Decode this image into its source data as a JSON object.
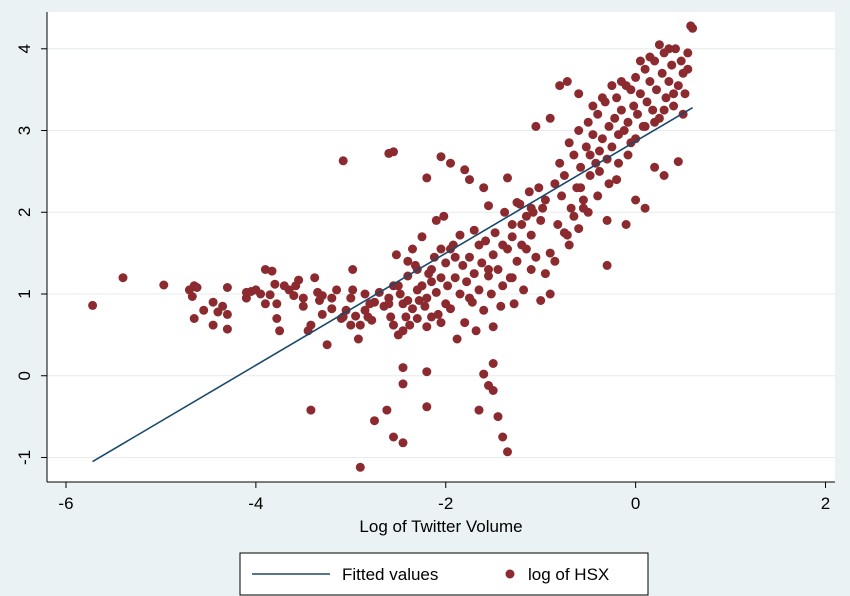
{
  "chart_data": {
    "type": "scatter",
    "title": "",
    "xlabel": "Log of Twitter Volume",
    "ylabel": "",
    "xlim": [
      -6.2,
      2.1
    ],
    "ylim": [
      -1.3,
      4.45
    ],
    "x_ticks": [
      -6,
      -4,
      -2,
      0,
      2
    ],
    "y_ticks": [
      -1,
      0,
      1,
      2,
      3,
      4
    ],
    "x_tick_labels": [
      "-6",
      "-4",
      "-2",
      "0",
      "2"
    ],
    "y_tick_labels": [
      "-1",
      "0",
      "1",
      "2",
      "3",
      "4"
    ],
    "grid": "horizontal",
    "legend_position": "bottom",
    "colors": {
      "plot_background": "#ffffff",
      "outer_background": "#eaf2f3",
      "gridline": "#e6ecee",
      "fitted_line": "#1a4a6b",
      "points": "#8b2a2f"
    },
    "series": [
      {
        "name": "Fitted values",
        "kind": "line",
        "points": [
          [
            -5.72,
            -1.05
          ],
          [
            0.6,
            3.28
          ]
        ]
      },
      {
        "name": "log of HSX",
        "kind": "scatter",
        "points": [
          [
            -5.72,
            0.86
          ],
          [
            -5.4,
            1.2
          ],
          [
            -4.97,
            1.11
          ],
          [
            -4.65,
            1.1
          ],
          [
            -4.62,
            1.08
          ],
          [
            -4.67,
            0.97
          ],
          [
            -4.65,
            0.7
          ],
          [
            -4.55,
            0.8
          ],
          [
            -4.45,
            0.62
          ],
          [
            -4.4,
            0.78
          ],
          [
            -4.35,
            0.85
          ],
          [
            -4.3,
            0.57
          ],
          [
            -4.3,
            0.75
          ],
          [
            -4.3,
            1.08
          ],
          [
            -4.1,
            0.95
          ],
          [
            -4.05,
            1.03
          ],
          [
            -4.0,
            1.05
          ],
          [
            -3.95,
            1.0
          ],
          [
            -3.9,
            1.3
          ],
          [
            -3.85,
            0.99
          ],
          [
            -3.83,
            1.28
          ],
          [
            -3.8,
            1.12
          ],
          [
            -3.78,
            0.88
          ],
          [
            -3.78,
            0.7
          ],
          [
            -3.75,
            0.55
          ],
          [
            -3.65,
            1.05
          ],
          [
            -3.6,
            0.98
          ],
          [
            -3.58,
            1.1
          ],
          [
            -3.55,
            1.17
          ],
          [
            -3.5,
            0.85
          ],
          [
            -3.45,
            0.55
          ],
          [
            -3.42,
            0.62
          ],
          [
            -3.38,
            1.2
          ],
          [
            -3.35,
            1.02
          ],
          [
            -3.33,
            0.92
          ],
          [
            -3.3,
            0.75
          ],
          [
            -3.3,
            0.98
          ],
          [
            -3.25,
            0.38
          ],
          [
            -3.2,
            0.82
          ],
          [
            -3.15,
            1.05
          ],
          [
            -3.1,
            0.7
          ],
          [
            -3.08,
            0.72
          ],
          [
            -3.05,
            0.8
          ],
          [
            -3.0,
            0.95
          ],
          [
            -2.98,
            1.05
          ],
          [
            -2.95,
            0.73
          ],
          [
            -2.92,
            0.45
          ],
          [
            -2.9,
            0.62
          ],
          [
            -2.85,
            1.0
          ],
          [
            -2.82,
            0.72
          ],
          [
            -2.8,
            0.88
          ],
          [
            -2.78,
            0.68
          ],
          [
            -2.75,
            0.9
          ],
          [
            -3.08,
            2.63
          ],
          [
            -2.98,
            1.3
          ],
          [
            -3.42,
            -0.42
          ],
          [
            -2.9,
            -1.12
          ],
          [
            -2.75,
            -0.55
          ],
          [
            -2.6,
            2.72
          ],
          [
            -2.55,
            2.74
          ],
          [
            -2.62,
            -0.42
          ],
          [
            -2.65,
            0.85
          ],
          [
            -2.6,
            0.95
          ],
          [
            -2.58,
            0.72
          ],
          [
            -2.55,
            0.62
          ],
          [
            -2.5,
            1.1
          ],
          [
            -2.52,
            1.48
          ],
          [
            -2.48,
            1.0
          ],
          [
            -2.45,
            0.88
          ],
          [
            -2.45,
            0.55
          ],
          [
            -2.42,
            0.72
          ],
          [
            -2.4,
            1.22
          ],
          [
            -2.4,
            0.92
          ],
          [
            -2.38,
            0.62
          ],
          [
            -2.35,
            1.55
          ],
          [
            -2.35,
            0.82
          ],
          [
            -2.32,
            1.35
          ],
          [
            -2.3,
            1.3
          ],
          [
            -2.3,
            1.05
          ],
          [
            -2.28,
            0.92
          ],
          [
            -2.25,
            1.7
          ],
          [
            -2.25,
            1.1
          ],
          [
            -2.22,
            0.85
          ],
          [
            -2.2,
            0.6
          ],
          [
            -2.2,
            0.95
          ],
          [
            -2.18,
            1.25
          ],
          [
            -2.15,
            0.72
          ],
          [
            -2.15,
            1.15
          ],
          [
            -2.12,
            1.45
          ],
          [
            -2.1,
            1.9
          ],
          [
            -2.1,
            1.02
          ],
          [
            -2.08,
            0.75
          ],
          [
            -2.05,
            1.55
          ],
          [
            -2.05,
            1.2
          ],
          [
            -2.02,
            1.95
          ],
          [
            -2.0,
            1.38
          ],
          [
            -2.0,
            0.88
          ],
          [
            -1.98,
            1.1
          ],
          [
            -1.95,
            0.82
          ],
          [
            -1.92,
            1.6
          ],
          [
            -1.9,
            1.2
          ],
          [
            -1.9,
            1.45
          ],
          [
            -1.88,
            0.45
          ],
          [
            -1.85,
            1.72
          ],
          [
            -1.85,
            1.0
          ],
          [
            -1.82,
            1.35
          ],
          [
            -1.8,
            0.65
          ],
          [
            -1.78,
            1.15
          ],
          [
            -1.75,
            1.45
          ],
          [
            -1.72,
            0.9
          ],
          [
            -1.7,
            1.78
          ],
          [
            -1.7,
            1.25
          ],
          [
            -1.68,
            0.55
          ],
          [
            -1.65,
            1.05
          ],
          [
            -1.62,
            1.38
          ],
          [
            -1.6,
            0.8
          ],
          [
            -1.58,
            1.65
          ],
          [
            -1.55,
            1.22
          ],
          [
            -1.52,
            1.0
          ],
          [
            -1.5,
            0.6
          ],
          [
            -1.5,
            1.48
          ],
          [
            -1.48,
            1.75
          ],
          [
            -1.45,
            1.3
          ],
          [
            -1.42,
            0.85
          ],
          [
            -1.4,
            1.1
          ],
          [
            -1.38,
            2.0
          ],
          [
            -1.35,
            1.55
          ],
          [
            -1.32,
            1.2
          ],
          [
            -1.3,
            1.85
          ],
          [
            -1.28,
            0.88
          ],
          [
            -1.25,
            1.4
          ],
          [
            -1.22,
            2.1
          ],
          [
            -1.2,
            1.6
          ],
          [
            -1.18,
            1.05
          ],
          [
            -1.15,
            1.95
          ],
          [
            -1.12,
            2.25
          ],
          [
            -1.1,
            1.72
          ],
          [
            -1.08,
            2.0
          ],
          [
            -1.05,
            1.45
          ],
          [
            -1.02,
            2.3
          ],
          [
            -1.0,
            1.9
          ],
          [
            -0.98,
            2.05
          ],
          [
            -0.95,
            2.15
          ],
          [
            -2.45,
            0.1
          ],
          [
            -2.45,
            -0.1
          ],
          [
            -2.45,
            -0.82
          ],
          [
            -2.2,
            0.05
          ],
          [
            -2.2,
            -0.38
          ],
          [
            -2.55,
            -0.75
          ],
          [
            -1.6,
            0.02
          ],
          [
            -1.55,
            -0.12
          ],
          [
            -1.5,
            -0.18
          ],
          [
            -1.5,
            0.15
          ],
          [
            -1.65,
            -0.42
          ],
          [
            -1.45,
            -0.5
          ],
          [
            -1.4,
            -0.75
          ],
          [
            -1.35,
            -0.93
          ],
          [
            -2.2,
            2.42
          ],
          [
            -2.05,
            2.68
          ],
          [
            -1.95,
            2.6
          ],
          [
            -1.8,
            2.52
          ],
          [
            -1.75,
            2.4
          ],
          [
            -1.6,
            2.3
          ],
          [
            -1.55,
            2.08
          ],
          [
            -1.35,
            2.42
          ],
          [
            -1.25,
            2.12
          ],
          [
            -0.9,
            1.5
          ],
          [
            -0.85,
            2.35
          ],
          [
            -0.82,
            1.85
          ],
          [
            -0.8,
            2.6
          ],
          [
            -0.78,
            2.2
          ],
          [
            -0.75,
            2.45
          ],
          [
            -0.72,
            1.72
          ],
          [
            -0.7,
            2.85
          ],
          [
            -0.68,
            2.05
          ],
          [
            -0.65,
            2.7
          ],
          [
            -0.62,
            2.3
          ],
          [
            -0.6,
            3.0
          ],
          [
            -0.58,
            2.55
          ],
          [
            -0.55,
            2.15
          ],
          [
            -0.52,
            2.8
          ],
          [
            -0.5,
            3.1
          ],
          [
            -0.48,
            2.45
          ],
          [
            -0.45,
            2.95
          ],
          [
            -0.42,
            2.6
          ],
          [
            -0.4,
            3.2
          ],
          [
            -0.38,
            2.75
          ],
          [
            -0.35,
            2.9
          ],
          [
            -0.32,
            3.35
          ],
          [
            -0.3,
            2.65
          ],
          [
            -0.28,
            3.05
          ],
          [
            -0.25,
            2.8
          ],
          [
            -0.22,
            3.15
          ],
          [
            -0.2,
            3.4
          ],
          [
            -0.18,
            2.95
          ],
          [
            -0.15,
            3.25
          ],
          [
            -0.12,
            3.0
          ],
          [
            -0.1,
            3.55
          ],
          [
            -0.08,
            3.1
          ],
          [
            -0.05,
            2.85
          ],
          [
            -0.02,
            3.3
          ],
          [
            0.0,
            3.65
          ],
          [
            0.02,
            3.2
          ],
          [
            0.05,
            3.45
          ],
          [
            0.08,
            3.05
          ],
          [
            0.1,
            3.75
          ],
          [
            0.12,
            3.35
          ],
          [
            0.15,
            3.6
          ],
          [
            0.18,
            3.25
          ],
          [
            0.2,
            3.85
          ],
          [
            0.22,
            3.5
          ],
          [
            0.25,
            3.15
          ],
          [
            0.28,
            3.7
          ],
          [
            0.3,
            3.95
          ],
          [
            0.32,
            3.4
          ],
          [
            0.35,
            3.6
          ],
          [
            0.38,
            3.8
          ],
          [
            0.4,
            3.3
          ],
          [
            0.42,
            4.0
          ],
          [
            0.45,
            3.55
          ],
          [
            0.48,
            3.85
          ],
          [
            0.5,
            3.7
          ],
          [
            0.52,
            3.45
          ],
          [
            0.55,
            3.95
          ],
          [
            0.58,
            4.28
          ],
          [
            0.6,
            4.25
          ],
          [
            0.55,
            3.75
          ],
          [
            0.5,
            3.2
          ],
          [
            -1.05,
            3.05
          ],
          [
            -0.9,
            3.15
          ],
          [
            -0.8,
            3.55
          ],
          [
            -0.72,
            3.6
          ],
          [
            -0.6,
            3.45
          ],
          [
            -0.45,
            3.3
          ],
          [
            -0.35,
            3.4
          ],
          [
            -0.25,
            3.55
          ],
          [
            -0.15,
            3.6
          ],
          [
            -0.05,
            3.5
          ],
          [
            0.05,
            3.85
          ],
          [
            0.15,
            3.9
          ],
          [
            0.25,
            4.05
          ],
          [
            0.35,
            4.0
          ],
          [
            -0.6,
            1.8
          ],
          [
            -0.5,
            2.0
          ],
          [
            -0.4,
            2.2
          ],
          [
            -0.3,
            1.9
          ],
          [
            -0.2,
            2.4
          ],
          [
            -0.1,
            1.85
          ],
          [
            0.0,
            2.15
          ],
          [
            0.1,
            2.05
          ],
          [
            0.2,
            2.55
          ],
          [
            0.3,
            2.45
          ],
          [
            0.45,
            2.62
          ],
          [
            -0.3,
            1.35
          ],
          [
            -0.55,
            2.05
          ],
          [
            -0.7,
            1.6
          ],
          [
            -0.95,
            1.25
          ],
          [
            -1.1,
            1.3
          ],
          [
            -1.0,
            0.92
          ],
          [
            -0.9,
            1.0
          ],
          [
            -0.85,
            1.4
          ],
          [
            -0.75,
            1.75
          ],
          [
            -0.65,
            1.95
          ],
          [
            -0.58,
            2.3
          ],
          [
            -0.48,
            2.7
          ],
          [
            -0.38,
            2.5
          ],
          [
            -0.28,
            2.35
          ],
          [
            -0.18,
            2.6
          ],
          [
            -0.08,
            2.7
          ],
          [
            0.0,
            2.9
          ],
          [
            0.1,
            3.05
          ],
          [
            0.2,
            3.1
          ],
          [
            0.3,
            3.25
          ],
          [
            0.4,
            3.45
          ],
          [
            -1.3,
            1.7
          ],
          [
            -1.2,
            1.85
          ],
          [
            -1.1,
            2.05
          ],
          [
            -1.15,
            1.55
          ],
          [
            -1.3,
            1.2
          ],
          [
            -1.4,
            1.6
          ],
          [
            -1.55,
            1.3
          ],
          [
            -1.65,
            1.6
          ],
          [
            -1.75,
            0.95
          ],
          [
            -1.95,
            1.55
          ],
          [
            -2.05,
            0.65
          ],
          [
            -2.15,
            1.3
          ],
          [
            -2.3,
            0.7
          ],
          [
            -2.4,
            1.4
          ],
          [
            -2.5,
            0.5
          ],
          [
            -2.55,
            1.1
          ],
          [
            -2.6,
            0.88
          ],
          [
            -2.7,
            1.02
          ],
          [
            -2.85,
            0.8
          ],
          [
            -3.0,
            0.62
          ],
          [
            -3.2,
            0.95
          ],
          [
            -3.5,
            0.95
          ],
          [
            -3.7,
            1.1
          ],
          [
            -3.9,
            0.88
          ],
          [
            -4.1,
            1.02
          ],
          [
            -4.45,
            0.9
          ],
          [
            -4.7,
            1.05
          ]
        ]
      }
    ]
  }
}
